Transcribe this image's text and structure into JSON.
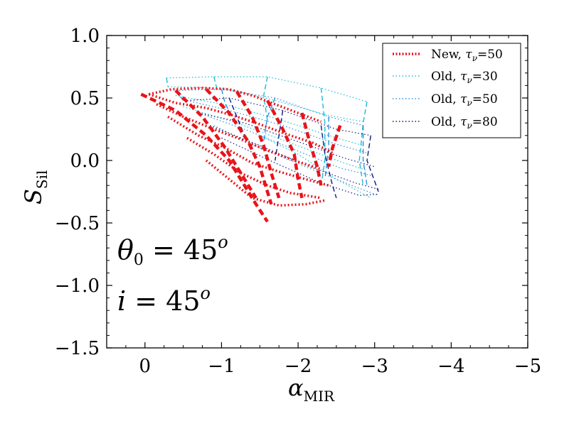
{
  "chart_data": {
    "type": "line",
    "xlabel": "α",
    "xlabel_sub": "MIR",
    "ylabel": "S",
    "ylabel_sub": "Sil",
    "xlim": [
      0.5,
      -5
    ],
    "ylim": [
      -1.5,
      1.0
    ],
    "x_ticks": [
      {
        "value": 0,
        "label": "0"
      },
      {
        "value": -1,
        "label": "−1"
      },
      {
        "value": -2,
        "label": "−2"
      },
      {
        "value": -3,
        "label": "−3"
      },
      {
        "value": -4,
        "label": "−4"
      },
      {
        "value": -5,
        "label": "−5"
      }
    ],
    "y_ticks": [
      {
        "value": 1.0,
        "label": "1.0"
      },
      {
        "value": 0.5,
        "label": "0.5"
      },
      {
        "value": 0.0,
        "label": "0.0"
      },
      {
        "value": -0.5,
        "label": "−0.5"
      },
      {
        "value": -1.0,
        "label": "−1.0"
      },
      {
        "value": -1.5,
        "label": "−1.5"
      }
    ],
    "annotations": [
      {
        "id": "theta",
        "var": "θ",
        "sub": "0",
        "text": " = 45",
        "sup": "o"
      },
      {
        "id": "incl",
        "var": "i",
        "sub": "",
        "text": " = 45",
        "sup": "o"
      }
    ],
    "legend": {
      "position": "top-right",
      "entries": [
        {
          "label": "New, ",
          "tau": "τ",
          "nu": "ν",
          "value": "=50",
          "color": "#e8141b",
          "style": "dotted"
        },
        {
          "label": "Old, ",
          "tau": "τ",
          "nu": "ν",
          "value": "=30",
          "color": "#16bfd6",
          "style": "dotted"
        },
        {
          "label": "Old, ",
          "tau": "τ",
          "nu": "ν",
          "value": "=50",
          "color": "#2a8fde",
          "style": "dotted"
        },
        {
          "label": "Old, ",
          "tau": "τ",
          "nu": "ν",
          "value": "=80",
          "color": "#0b1a80",
          "style": "dotted"
        }
      ]
    },
    "series": [
      {
        "name": "New, τν=50",
        "color": "#e8141b",
        "curves": [
          [
            [
              -0.05,
              0.53
            ],
            [
              -0.35,
              0.57
            ],
            [
              -0.75,
              0.58
            ],
            [
              -1.1,
              0.57
            ],
            [
              -1.4,
              0.52
            ],
            [
              -1.7,
              0.45
            ],
            [
              -2.0,
              0.38
            ],
            [
              -2.3,
              0.31
            ]
          ],
          [
            [
              -0.05,
              0.53
            ],
            [
              -0.4,
              0.46
            ],
            [
              -0.8,
              0.42
            ],
            [
              -1.15,
              0.36
            ],
            [
              -1.5,
              0.29
            ],
            [
              -1.85,
              0.21
            ],
            [
              -2.2,
              0.14
            ],
            [
              -2.45,
              0.06
            ]
          ],
          [
            [
              -0.15,
              0.45
            ],
            [
              -0.5,
              0.35
            ],
            [
              -0.9,
              0.25
            ],
            [
              -1.25,
              0.17
            ],
            [
              -1.6,
              0.08
            ],
            [
              -1.95,
              0.0
            ],
            [
              -2.3,
              -0.07
            ]
          ],
          [
            [
              -0.3,
              0.35
            ],
            [
              -0.7,
              0.2
            ],
            [
              -1.05,
              0.1
            ],
            [
              -1.4,
              -0.02
            ],
            [
              -1.75,
              -0.09
            ],
            [
              -2.1,
              -0.15
            ],
            [
              -2.4,
              -0.2
            ]
          ],
          [
            [
              -0.55,
              0.18
            ],
            [
              -0.9,
              0.05
            ],
            [
              -1.25,
              -0.1
            ],
            [
              -1.6,
              -0.2
            ],
            [
              -1.9,
              -0.26
            ],
            [
              -2.3,
              -0.3
            ]
          ],
          [
            [
              -0.8,
              0.0
            ],
            [
              -1.1,
              -0.15
            ],
            [
              -1.4,
              -0.3
            ],
            [
              -1.75,
              -0.36
            ],
            [
              -2.1,
              -0.35
            ],
            [
              -2.35,
              -0.32
            ]
          ]
        ],
        "spokes": [
          [
            [
              0.05,
              0.53
            ],
            [
              -0.4,
              0.4
            ],
            [
              -0.8,
              0.2
            ],
            [
              -1.1,
              0.0
            ],
            [
              -1.3,
              -0.2
            ],
            [
              -1.45,
              -0.35
            ],
            [
              -1.6,
              -0.49
            ]
          ],
          [
            [
              -0.4,
              0.56
            ],
            [
              -0.75,
              0.35
            ],
            [
              -1.05,
              0.1
            ],
            [
              -1.25,
              -0.1
            ],
            [
              -1.45,
              -0.3
            ]
          ],
          [
            [
              -0.8,
              0.57
            ],
            [
              -1.1,
              0.38
            ],
            [
              -1.35,
              0.15
            ],
            [
              -1.5,
              -0.05
            ],
            [
              -1.6,
              -0.25
            ],
            [
              -1.65,
              -0.35
            ]
          ],
          [
            [
              -1.2,
              0.55
            ],
            [
              -1.4,
              0.35
            ],
            [
              -1.55,
              0.12
            ],
            [
              -1.65,
              -0.1
            ],
            [
              -1.75,
              -0.3
            ]
          ],
          [
            [
              -1.6,
              0.48
            ],
            [
              -1.8,
              0.25
            ],
            [
              -1.95,
              0.05
            ],
            [
              -2.0,
              -0.15
            ],
            [
              -2.05,
              -0.3
            ]
          ],
          [
            [
              -2.05,
              0.38
            ],
            [
              -2.15,
              0.15
            ],
            [
              -2.25,
              -0.05
            ],
            [
              -2.3,
              -0.2
            ]
          ],
          [
            [
              -2.55,
              0.28
            ],
            [
              -2.45,
              0.1
            ],
            [
              -2.4,
              -0.05
            ]
          ]
        ]
      },
      {
        "name": "Old, τν=30",
        "color": "#16bfd6",
        "curves": [
          [
            [
              -0.28,
              0.66
            ],
            [
              -0.9,
              0.67
            ],
            [
              -1.6,
              0.67
            ],
            [
              -2.3,
              0.58
            ],
            [
              -2.9,
              0.47
            ]
          ],
          [
            [
              -0.3,
              0.59
            ],
            [
              -1.0,
              0.58
            ],
            [
              -1.7,
              0.48
            ],
            [
              -2.4,
              0.36
            ],
            [
              -2.85,
              0.31
            ]
          ],
          [
            [
              -0.4,
              0.52
            ],
            [
              -1.1,
              0.44
            ],
            [
              -1.8,
              0.32
            ],
            [
              -2.5,
              0.18
            ],
            [
              -2.85,
              0.12
            ]
          ],
          [
            [
              -0.5,
              0.43
            ],
            [
              -1.2,
              0.3
            ],
            [
              -1.9,
              0.14
            ],
            [
              -2.6,
              -0.02
            ],
            [
              -2.9,
              -0.08
            ]
          ],
          [
            [
              -1.5,
              0.2
            ],
            [
              -2.0,
              0.05
            ],
            [
              -2.5,
              -0.15
            ],
            [
              -2.95,
              -0.3
            ]
          ]
        ],
        "spokes": [
          [
            [
              -0.28,
              0.66
            ],
            [
              -0.3,
              0.59
            ]
          ],
          [
            [
              -0.9,
              0.67
            ],
            [
              -0.95,
              0.55
            ]
          ],
          [
            [
              -1.6,
              0.67
            ],
            [
              -1.55,
              0.52
            ],
            [
              -1.6,
              0.32
            ]
          ],
          [
            [
              -2.3,
              0.58
            ],
            [
              -2.35,
              0.3
            ],
            [
              -2.35,
              0.0
            ],
            [
              -2.3,
              -0.2
            ]
          ],
          [
            [
              -2.9,
              0.47
            ],
            [
              -2.85,
              0.3
            ],
            [
              -2.8,
              0.0
            ],
            [
              -2.85,
              -0.2
            ]
          ]
        ]
      },
      {
        "name": "Old, τν=50",
        "color": "#2a8fde",
        "curves": [
          [
            [
              -0.4,
              0.56
            ],
            [
              -1.0,
              0.57
            ],
            [
              -1.7,
              0.5
            ],
            [
              -2.4,
              0.35
            ],
            [
              -2.85,
              0.28
            ]
          ],
          [
            [
              -0.55,
              0.48
            ],
            [
              -1.1,
              0.4
            ],
            [
              -1.8,
              0.28
            ],
            [
              -2.5,
              0.13
            ],
            [
              -2.9,
              0.06
            ]
          ],
          [
            [
              -0.7,
              0.38
            ],
            [
              -1.3,
              0.25
            ],
            [
              -1.9,
              0.1
            ],
            [
              -2.55,
              -0.06
            ],
            [
              -2.95,
              -0.12
            ]
          ],
          [
            [
              -0.9,
              0.28
            ],
            [
              -1.5,
              0.1
            ],
            [
              -2.1,
              -0.05
            ],
            [
              -2.7,
              -0.2
            ],
            [
              -3.05,
              -0.28
            ]
          ]
        ],
        "spokes": [
          [
            [
              -0.4,
              0.56
            ],
            [
              -0.5,
              0.48
            ]
          ],
          [
            [
              -1.0,
              0.57
            ],
            [
              -1.05,
              0.45
            ],
            [
              -1.15,
              0.35
            ]
          ],
          [
            [
              -1.7,
              0.5
            ],
            [
              -1.6,
              0.35
            ],
            [
              -1.55,
              0.15
            ]
          ],
          [
            [
              -2.4,
              0.35
            ],
            [
              -2.4,
              0.1
            ],
            [
              -2.35,
              -0.15
            ]
          ],
          [
            [
              -2.85,
              0.28
            ],
            [
              -2.85,
              0.0
            ],
            [
              -2.9,
              -0.2
            ]
          ]
        ]
      },
      {
        "name": "Old, τν=80",
        "color": "#0b1a80",
        "curves": [
          [
            [
              -0.55,
              0.48
            ],
            [
              -1.1,
              0.5
            ],
            [
              -1.8,
              0.4
            ],
            [
              -2.5,
              0.25
            ],
            [
              -2.95,
              0.2
            ]
          ],
          [
            [
              -0.7,
              0.38
            ],
            [
              -1.3,
              0.3
            ],
            [
              -2.0,
              0.15
            ],
            [
              -2.6,
              0.02
            ],
            [
              -3.0,
              -0.05
            ]
          ],
          [
            [
              -0.85,
              0.28
            ],
            [
              -1.5,
              0.12
            ],
            [
              -2.15,
              -0.05
            ],
            [
              -2.75,
              -0.18
            ],
            [
              -3.05,
              -0.23
            ]
          ],
          [
            [
              -1.0,
              0.18
            ],
            [
              -1.7,
              -0.02
            ],
            [
              -2.3,
              -0.18
            ],
            [
              -2.8,
              -0.28
            ],
            [
              -3.05,
              -0.27
            ]
          ]
        ],
        "spokes": [
          [
            [
              -1.1,
              0.5
            ],
            [
              -1.2,
              0.35
            ],
            [
              -1.3,
              0.2
            ]
          ],
          [
            [
              -1.8,
              0.4
            ],
            [
              -1.75,
              0.2
            ],
            [
              -1.7,
              0.0
            ]
          ],
          [
            [
              -2.3,
              0.28
            ],
            [
              -2.35,
              0.05
            ],
            [
              -2.45,
              -0.2
            ],
            [
              -2.5,
              -0.3
            ]
          ],
          [
            [
              -2.95,
              0.2
            ],
            [
              -2.9,
              0.0
            ],
            [
              -3.05,
              -0.25
            ]
          ]
        ]
      }
    ]
  }
}
